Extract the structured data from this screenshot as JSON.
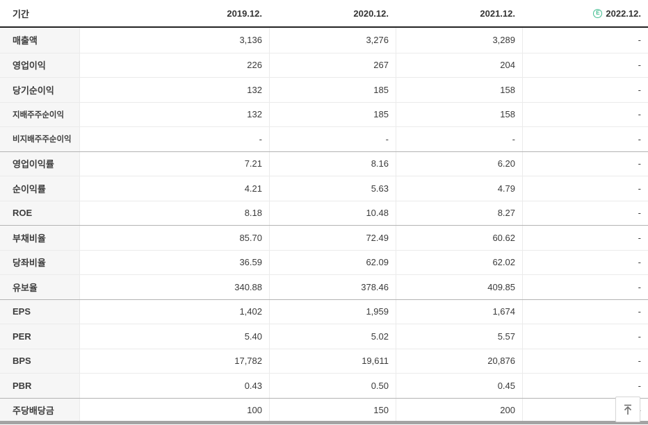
{
  "header": {
    "period_label": "기간",
    "estimate_badge": "E",
    "columns": [
      {
        "label": "2019.12.",
        "estimate": false
      },
      {
        "label": "2020.12.",
        "estimate": false
      },
      {
        "label": "2021.12.",
        "estimate": false
      },
      {
        "label": "2022.12.",
        "estimate": true
      }
    ]
  },
  "table": {
    "rows": [
      {
        "label": "매출액",
        "small": false,
        "group_start": false,
        "values": [
          "3,136",
          "3,276",
          "3,289",
          "-"
        ]
      },
      {
        "label": "영업이익",
        "small": false,
        "group_start": false,
        "values": [
          "226",
          "267",
          "204",
          "-"
        ]
      },
      {
        "label": "당기순이익",
        "small": false,
        "group_start": false,
        "values": [
          "132",
          "185",
          "158",
          "-"
        ]
      },
      {
        "label": "지배주주순이익",
        "small": true,
        "group_start": false,
        "values": [
          "132",
          "185",
          "158",
          "-"
        ]
      },
      {
        "label": "비지배주주순이익",
        "small": true,
        "group_start": false,
        "values": [
          "-",
          "-",
          "-",
          "-"
        ]
      },
      {
        "label": "영업이익률",
        "small": false,
        "group_start": true,
        "values": [
          "7.21",
          "8.16",
          "6.20",
          "-"
        ]
      },
      {
        "label": "순이익률",
        "small": false,
        "group_start": false,
        "values": [
          "4.21",
          "5.63",
          "4.79",
          "-"
        ]
      },
      {
        "label": "ROE",
        "small": false,
        "group_start": false,
        "values": [
          "8.18",
          "10.48",
          "8.27",
          "-"
        ]
      },
      {
        "label": "부채비율",
        "small": false,
        "group_start": true,
        "values": [
          "85.70",
          "72.49",
          "60.62",
          "-"
        ]
      },
      {
        "label": "당좌비율",
        "small": false,
        "group_start": false,
        "values": [
          "36.59",
          "62.09",
          "62.02",
          "-"
        ]
      },
      {
        "label": "유보율",
        "small": false,
        "group_start": false,
        "values": [
          "340.88",
          "378.46",
          "409.85",
          "-"
        ]
      },
      {
        "label": "EPS",
        "small": false,
        "group_start": true,
        "values": [
          "1,402",
          "1,959",
          "1,674",
          "-"
        ]
      },
      {
        "label": "PER",
        "small": false,
        "group_start": false,
        "values": [
          "5.40",
          "5.02",
          "5.57",
          "-"
        ]
      },
      {
        "label": "BPS",
        "small": false,
        "group_start": false,
        "values": [
          "17,782",
          "19,611",
          "20,876",
          "-"
        ]
      },
      {
        "label": "PBR",
        "small": false,
        "group_start": false,
        "values": [
          "0.43",
          "0.50",
          "0.45",
          "-"
        ]
      },
      {
        "label": "주당배당금",
        "small": false,
        "group_start": true,
        "values": [
          "100",
          "150",
          "200",
          "-"
        ]
      }
    ]
  },
  "colors": {
    "estimate_green": "#41bd90",
    "header_border": "#222222",
    "row_border": "#ebebeb",
    "group_border": "#b3b3b3",
    "label_bg": "#f6f6f6",
    "text": "#3a3a3a",
    "scrollbar": "#a3a3a3"
  }
}
